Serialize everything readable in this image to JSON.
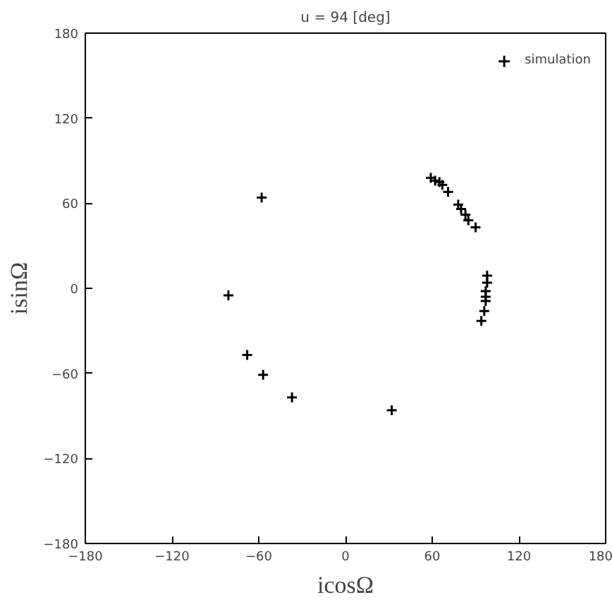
{
  "chart_data": {
    "type": "scatter",
    "title": "u = 94 [deg]",
    "xlabel": "icosΩ",
    "ylabel": "isinΩ",
    "series": [
      {
        "name": "simulation",
        "color": "#000000",
        "x": [
          -58,
          -81,
          -68,
          -57,
          -37,
          32,
          59,
          62,
          65,
          67,
          71,
          78,
          80,
          83,
          85,
          90,
          98,
          98,
          97,
          97,
          97,
          96,
          94
        ],
        "values": [
          64,
          -5,
          -47,
          -61,
          -77,
          -86,
          78,
          76,
          75,
          73,
          68,
          59,
          56,
          52,
          48,
          43,
          9,
          4,
          -2,
          -6,
          -9,
          -16,
          -23
        ]
      }
    ],
    "xlim": [
      -180,
      180
    ],
    "ylim": [
      -180,
      180
    ],
    "xticks": [
      -180,
      -120,
      -60,
      0,
      60,
      120,
      180
    ],
    "yticks": [
      -180,
      -120,
      -60,
      0,
      60,
      120,
      180
    ],
    "marker": "cross",
    "legend": "top right",
    "grid": false
  }
}
